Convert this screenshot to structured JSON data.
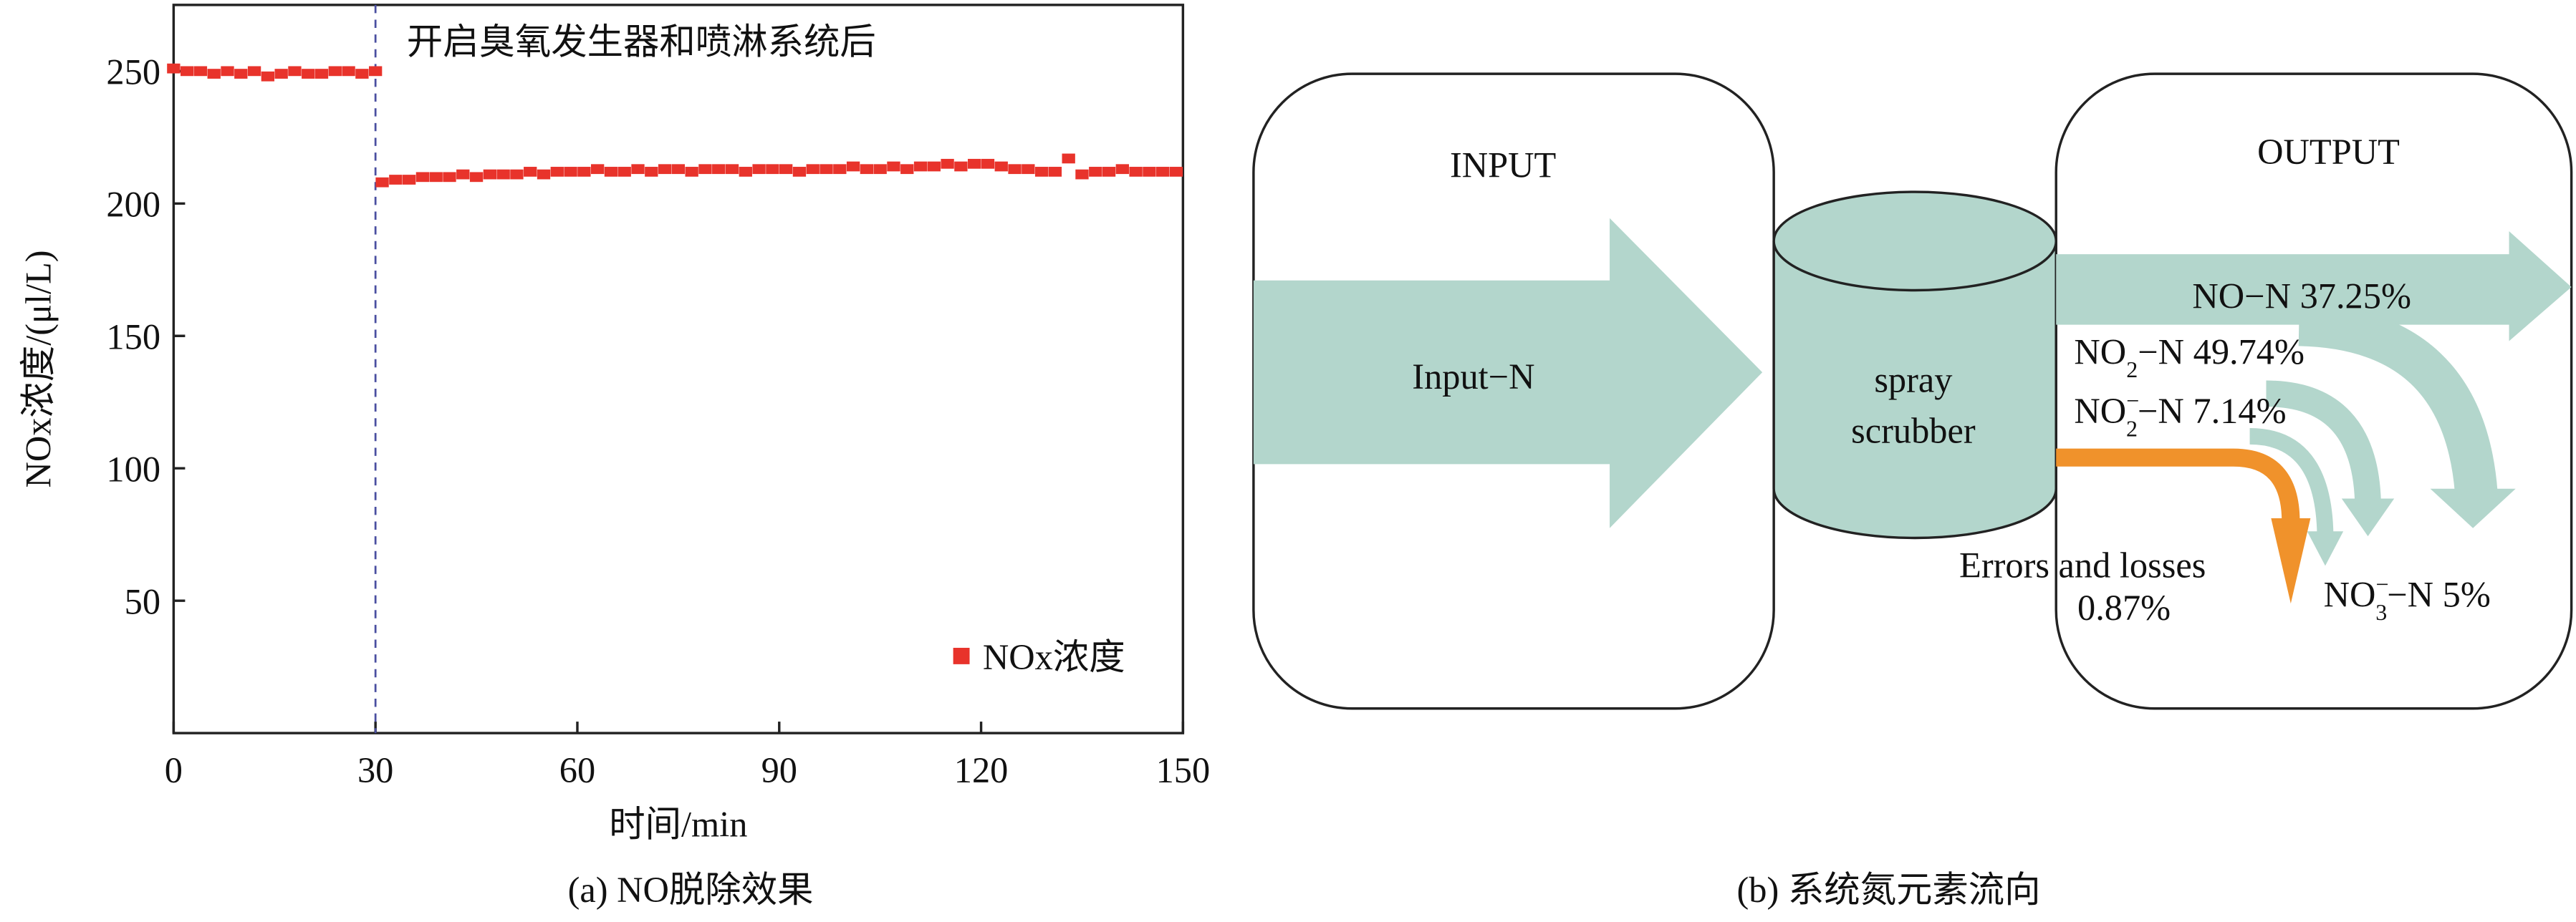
{
  "chart_data": {
    "type": "scatter",
    "annotation": "开启臭氧发生器和喷淋系统后",
    "xlabel": "时间/min",
    "ylabel": "NOx浓度/(μl/L)",
    "caption": "(a) NO脱除效果",
    "vline": 30,
    "legend": "lower right",
    "x": [
      0,
      2,
      4,
      6,
      8,
      10,
      12,
      14,
      16,
      18,
      20,
      22,
      24,
      26,
      28,
      30,
      31,
      33,
      35,
      37,
      39,
      41,
      43,
      45,
      47,
      49,
      51,
      53,
      55,
      57,
      59,
      61,
      63,
      65,
      67,
      69,
      71,
      73,
      75,
      77,
      79,
      81,
      83,
      85,
      87,
      89,
      91,
      93,
      95,
      97,
      99,
      101,
      103,
      105,
      107,
      109,
      111,
      113,
      115,
      117,
      119,
      121,
      123,
      125,
      127,
      129,
      131,
      133,
      135,
      137,
      139,
      141,
      143,
      145,
      147,
      149
    ],
    "series": [
      {
        "name": "NOx浓度",
        "color": "#e8332b",
        "values": [
          251,
          250,
          250,
          249,
          250,
          249,
          250,
          248,
          249,
          250,
          249,
          249,
          250,
          250,
          249,
          250,
          208,
          209,
          209,
          210,
          210,
          210,
          211,
          210,
          211,
          211,
          211,
          212,
          211,
          212,
          212,
          212,
          213,
          212,
          212,
          213,
          212,
          213,
          213,
          212,
          213,
          213,
          213,
          212,
          213,
          213,
          213,
          212,
          213,
          213,
          213,
          214,
          213,
          213,
          214,
          213,
          214,
          214,
          215,
          214,
          215,
          215,
          214,
          213,
          213,
          212,
          212,
          217,
          211,
          212,
          212,
          213,
          212,
          212,
          212,
          212
        ]
      }
    ],
    "xlim": [
      0,
      150
    ],
    "xticks": [
      0,
      30,
      60,
      90,
      120,
      150
    ],
    "ylim": [
      0,
      275
    ],
    "yticks": [
      50,
      100,
      150,
      200,
      250
    ]
  },
  "diagram": {
    "input_title": "INPUT",
    "input_label": "Input−N",
    "output_title": "OUTPUT",
    "scrubber": [
      "spray",
      "scrubber"
    ],
    "flows": [
      {
        "text": "NO−N 37.25%"
      },
      {
        "text": "NO",
        "sub": "2",
        "rest": "−N 49.74%"
      },
      {
        "text": "NO",
        "sub": "2",
        "sup": "−",
        "rest": "−N 7.14%"
      },
      {
        "text": "NO",
        "sub": "3",
        "sup": "−",
        "rest": "−N 5%"
      }
    ],
    "losses": [
      "Errors and losses",
      "0.87%"
    ],
    "caption": "(b) 系统氮元素流向"
  }
}
